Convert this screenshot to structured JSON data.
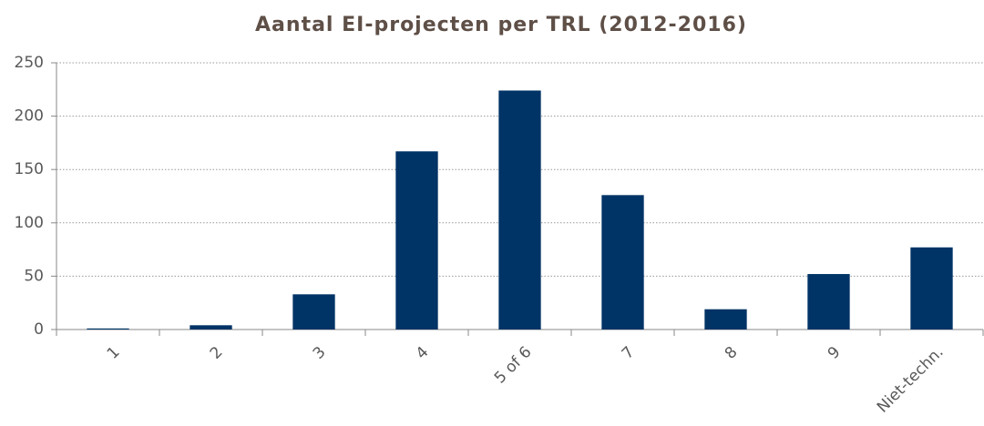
{
  "chart_data": {
    "type": "bar",
    "title": "Aantal EI-projecten per TRL (2012-2016)",
    "categories": [
      "1",
      "2",
      "3",
      "4",
      "5 of 6",
      "7",
      "8",
      "9",
      "Niet-techn."
    ],
    "values": [
      1,
      4,
      33,
      167,
      224,
      126,
      19,
      52,
      77
    ],
    "color": "#003366",
    "ylim": [
      0,
      250
    ],
    "yticks": [
      0,
      50,
      100,
      150,
      200,
      250
    ],
    "grid": true
  }
}
